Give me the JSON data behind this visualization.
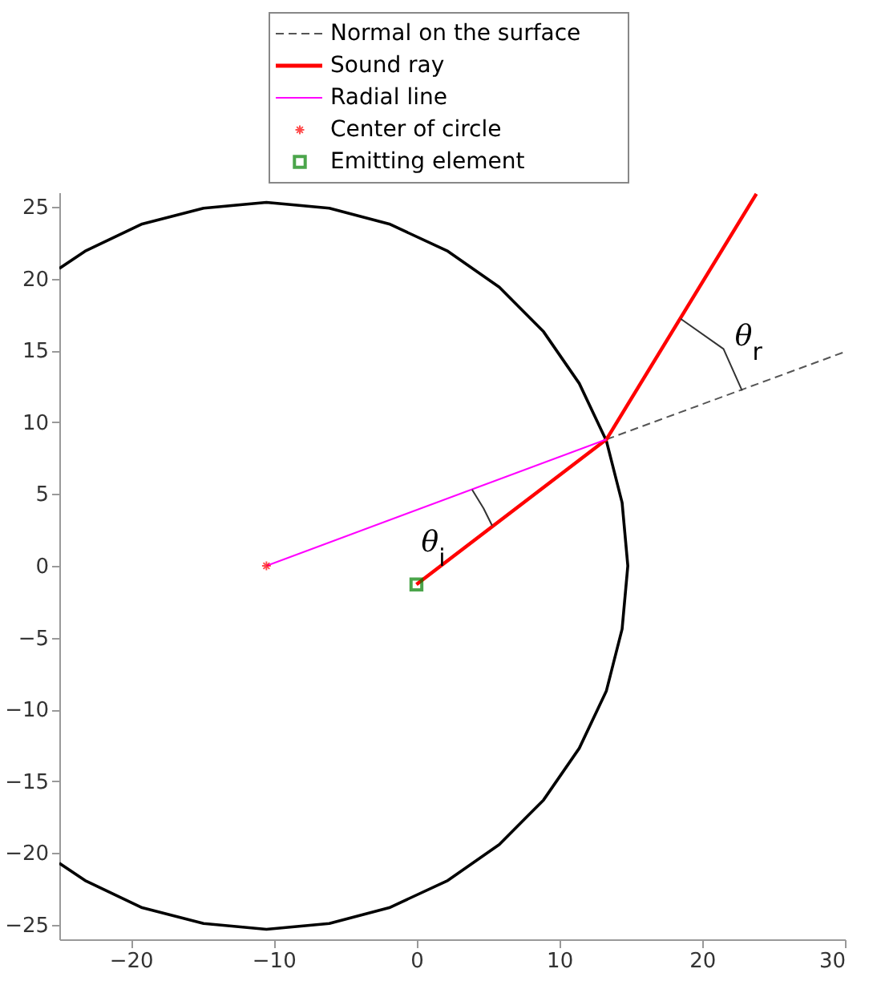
{
  "chart_data": {
    "type": "line",
    "xlim": [
      -25,
      30
    ],
    "ylim": [
      -26,
      26
    ],
    "xticks": [
      -20,
      -10,
      0,
      10,
      20,
      30
    ],
    "yticks": [
      -25,
      -20,
      -15,
      -10,
      -5,
      0,
      5,
      10,
      15,
      20,
      25
    ],
    "grid": false,
    "legend": "top",
    "series": [
      {
        "color": "#000000",
        "line_style": "solid",
        "x": [
          -25.0,
          -23.2,
          -19.2,
          -14.9,
          -10.5,
          -6.1,
          -1.9,
          2.2,
          5.8,
          8.9,
          11.4,
          13.3,
          14.4,
          14.8,
          14.4,
          13.3,
          11.4,
          8.9,
          5.8,
          2.2,
          -1.9,
          -6.1,
          -10.5,
          -14.9,
          -19.2,
          -23.2,
          -25.0
        ],
        "values": [
          20.7,
          21.9,
          23.8,
          24.9,
          25.3,
          24.9,
          23.8,
          21.9,
          19.4,
          16.3,
          12.7,
          8.7,
          4.4,
          0,
          -4.4,
          -8.7,
          -12.7,
          -16.3,
          -19.4,
          -21.9,
          -23.8,
          -24.9,
          -25.3,
          -24.9,
          -23.8,
          -21.9,
          -20.7
        ]
      },
      {
        "name": "Normal on the surface",
        "color": "#555555",
        "line_style": "dashed",
        "x": [
          13.3,
          30.0
        ],
        "values": [
          8.8,
          14.9
        ]
      },
      {
        "name": "Sound ray",
        "color": "#ff0000",
        "line_style": "solid",
        "x": [
          0,
          13.3,
          23.8
        ],
        "values": [
          -1.3,
          8.8,
          25.9
        ]
      },
      {
        "name": "Radial line",
        "color": "#ff00ff",
        "line_style": "solid",
        "x": [
          -10.5,
          13.3
        ],
        "values": [
          0,
          8.8
        ]
      },
      {
        "type": "scatter",
        "name": "Center of circle",
        "color": "#ff0000",
        "marker": "cross",
        "x": [
          -10.5
        ],
        "values": [
          0
        ]
      },
      {
        "type": "scatter",
        "name": "Emitting element",
        "color": "#008000",
        "marker": "square",
        "x": [
          0
        ],
        "values": [
          -1.3
        ]
      },
      {
        "color": "#333333",
        "line_style": "solid",
        "x": [
          3.9,
          4.7,
          5.3
        ],
        "values": [
          5.3,
          4.0,
          2.8
        ]
      },
      {
        "color": "#333333",
        "line_style": "solid",
        "x": [
          18.5,
          21.5,
          22.8
        ],
        "values": [
          17.2,
          15.1,
          12.2
        ]
      }
    ],
    "annotations": [
      {
        "text": "θ$_{i}$",
        "x": 4.7,
        "y": 4.0
      },
      {
        "text": "θ$_{r}$",
        "x": 21.5,
        "y": 15.1
      }
    ]
  }
}
